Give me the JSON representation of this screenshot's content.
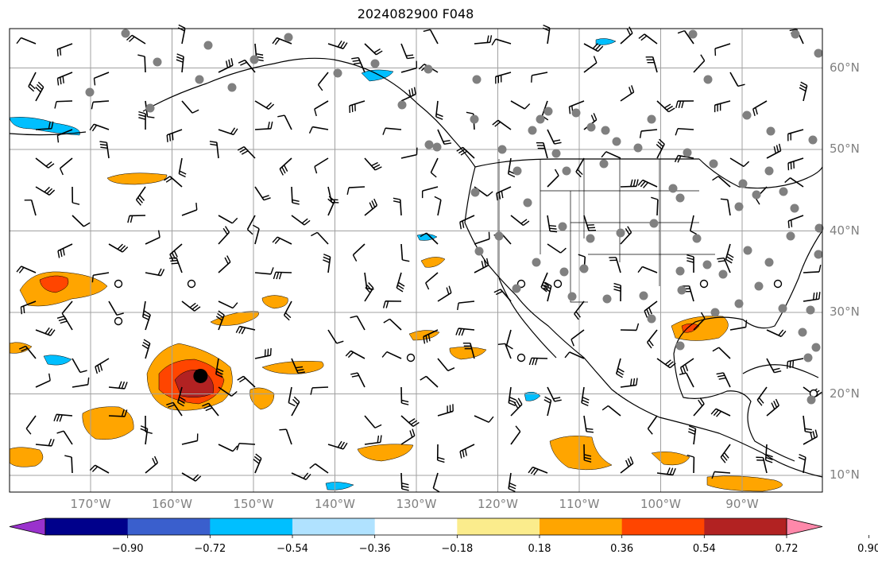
{
  "title": "2024082900 F048",
  "lat_labels": [
    {
      "text": "60°N",
      "lat": 60
    },
    {
      "text": "50°N",
      "lat": 50
    },
    {
      "text": "40°N",
      "lat": 40
    },
    {
      "text": "30°N",
      "lat": 30
    },
    {
      "text": "20°N",
      "lat": 20
    },
    {
      "text": "10°N",
      "lat": 10
    }
  ],
  "lon_labels": [
    {
      "text": "170°W",
      "lon": -170
    },
    {
      "text": "160°W",
      "lon": -160
    },
    {
      "text": "150°W",
      "lon": -150
    },
    {
      "text": "140°W",
      "lon": -140
    },
    {
      "text": "130°W",
      "lon": -130
    },
    {
      "text": "120°W",
      "lon": -120
    },
    {
      "text": "110°W",
      "lon": -110
    },
    {
      "text": "100°W",
      "lon": -100
    },
    {
      "text": "90°W",
      "lon": -90
    }
  ],
  "colorbar": {
    "colors": [
      "#9a32cd",
      "#00008b",
      "#3a5fcd",
      "#00bfff",
      "#b0e2ff",
      "#ffffff",
      "#fbec8c",
      "#ffa500",
      "#ff4500",
      "#b22222",
      "#ff88aa"
    ],
    "tick_labels": [
      "−0.90",
      "−0.72",
      "−0.54",
      "−0.36",
      "−0.18",
      "0.18",
      "0.36",
      "0.54",
      "0.72",
      "0.90"
    ]
  },
  "map": {
    "lon_range": [
      -180,
      -80
    ],
    "lat_range": [
      8,
      65
    ],
    "grid": true,
    "storm_center": {
      "lon": -156.5,
      "lat": 22.2
    }
  }
}
